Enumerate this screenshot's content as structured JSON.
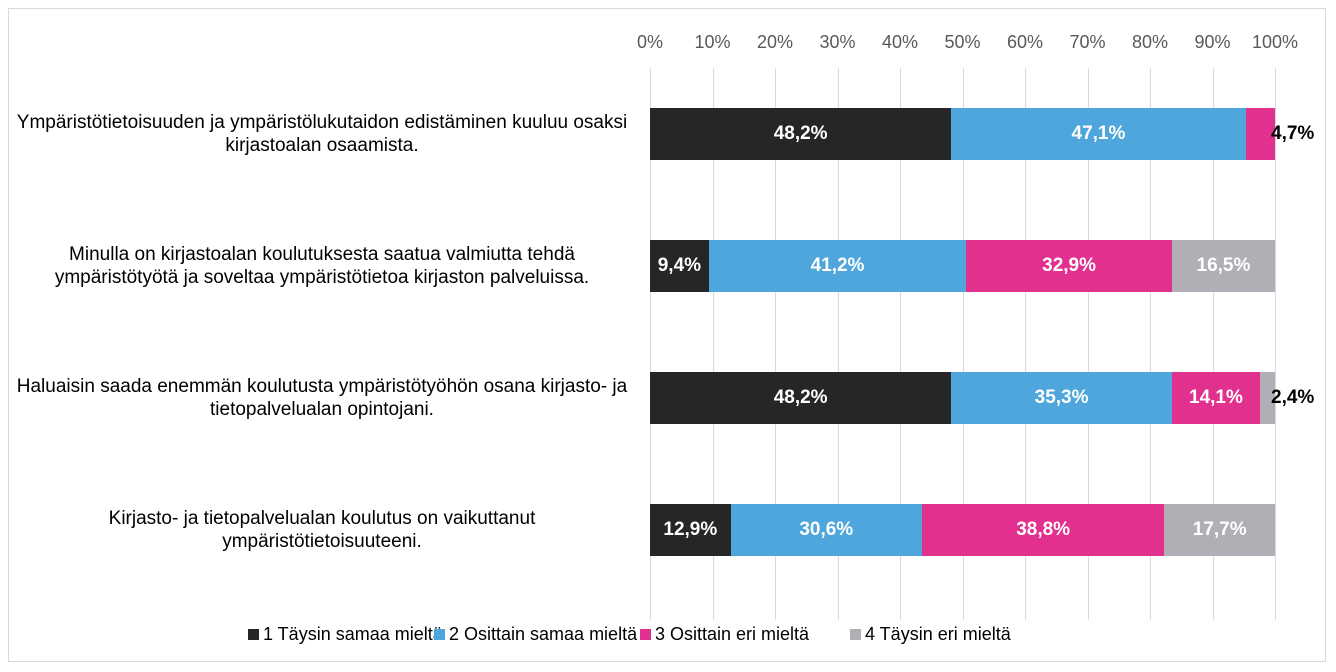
{
  "chart_data": {
    "type": "stacked_barh",
    "categories": [
      "Ympäristötietoisuuden ja ympäristölukutaidon edistäminen kuuluu osaksi kirjastoalan osaamista.",
      "Minulla on kirjastoalan koulutuksesta saatua valmiutta tehdä ympäristötyötä ja soveltaa ympäristötietoa kirjaston palveluissa.",
      "Haluaisin saada enemmän koulutusta ympäristötyöhön osana kirjasto- ja tietopalvelualan opintojani.",
      "Kirjasto- ja tietopalvelualan koulutus on vaikuttanut ympäristötietoisuuteeni."
    ],
    "series": [
      {
        "name": "1 Täysin samaa mieltä",
        "color": "#262626",
        "values": [
          48.2,
          9.4,
          48.2,
          12.9
        ],
        "value_labels": [
          "48,2%",
          "9,4%",
          "48,2%",
          "12,9%"
        ]
      },
      {
        "name": "2 Osittain samaa mieltä",
        "color": "#4ea6dc",
        "values": [
          47.1,
          41.2,
          35.3,
          30.6
        ],
        "value_labels": [
          "47,1%",
          "41,2%",
          "35,3%",
          "30,6%"
        ]
      },
      {
        "name": "3 Osittain eri mieltä",
        "color": "#e2308f",
        "values": [
          4.7,
          32.9,
          14.1,
          38.8
        ],
        "value_labels": [
          "4,7%",
          "32,9%",
          "14,1%",
          "38,8%"
        ]
      },
      {
        "name": "4 Täysin eri mieltä",
        "color": "#b1aeb5",
        "values": [
          null,
          16.5,
          2.4,
          17.7
        ],
        "value_labels": [
          null,
          "16,5%",
          "2,4%",
          "17,7%"
        ]
      }
    ],
    "xlim": [
      0,
      100
    ],
    "xticks": [
      {
        "value": 0,
        "label": "0%"
      },
      {
        "value": 10,
        "label": "10%"
      },
      {
        "value": 20,
        "label": "20%"
      },
      {
        "value": 30,
        "label": "30%"
      },
      {
        "value": 40,
        "label": "40%"
      },
      {
        "value": 50,
        "label": "50%"
      },
      {
        "value": 60,
        "label": "60%"
      },
      {
        "value": 70,
        "label": "70%"
      },
      {
        "value": 80,
        "label": "80%"
      },
      {
        "value": 90,
        "label": "90%"
      },
      {
        "value": 100,
        "label": "100%"
      }
    ],
    "grid": true,
    "legend": "bottom"
  }
}
